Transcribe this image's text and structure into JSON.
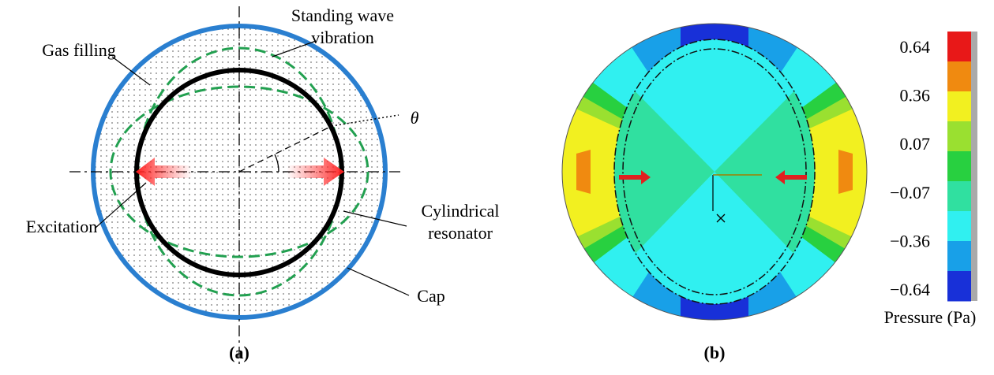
{
  "panel_a": {
    "label": "(a)",
    "annotations": {
      "gas_filling": "Gas filling",
      "standing_wave": [
        "Standing wave",
        "vibration"
      ],
      "theta": "θ",
      "excitation": "Excitation",
      "resonator": [
        "Cylindrical",
        "resonator"
      ],
      "cap": "Cap"
    }
  },
  "panel_b": {
    "label": "(b)",
    "colorbar": {
      "title": "Pressure (Pa)",
      "ticks": [
        0.64,
        0.36,
        0.07,
        {
          "value": -0.07,
          "label": "−0.07"
        },
        {
          "value": -0.36,
          "label": "−0.36"
        },
        {
          "value": -0.64,
          "label": "−0.64"
        }
      ],
      "colors": [
        "#e81818",
        "#f08a10",
        "#f2f020",
        "#9ae030",
        "#28d040",
        "#30e0a0",
        "#30f0f0",
        "#18a0e8",
        "#1830d8"
      ]
    }
  }
}
